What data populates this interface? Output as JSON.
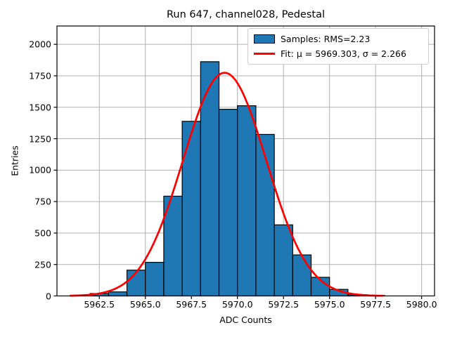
{
  "title": "Run 647, channel028, Pedestal",
  "axes": {
    "xlabel": "ADC Counts",
    "ylabel": "Entries",
    "xtick_labels": [
      "5962.5",
      "5965.0",
      "5967.5",
      "5970.0",
      "5972.5",
      "5975.0",
      "5977.5",
      "5980.0"
    ],
    "ytick_labels": [
      "0",
      "250",
      "500",
      "750",
      "1000",
      "1250",
      "1500",
      "1750",
      "2000"
    ]
  },
  "legend": {
    "entries": [
      {
        "label": "Samples: RMS=2.23",
        "marker": "patch",
        "color": "#1f77b4"
      },
      {
        "label": "Fit: μ = 5969.303, σ = 2.266",
        "marker": "line",
        "color": "#ff0000"
      }
    ]
  },
  "colors": {
    "bar_fill": "#1f77b4",
    "bar_edge": "#000000",
    "fit_line": "#ff0000",
    "grid": "#b0b0b0",
    "spine": "#000000",
    "background": "#ffffff"
  },
  "chart_data": {
    "type": "bar",
    "subtype": "histogram",
    "title": "Run 647, channel028, Pedestal",
    "xlabel": "ADC Counts",
    "ylabel": "Entries",
    "bin_edges": [
      5961,
      5962,
      5963,
      5964,
      5965,
      5966,
      5967,
      5968,
      5969,
      5970,
      5971,
      5972,
      5973,
      5974,
      5975,
      5976,
      5977,
      5978
    ],
    "counts": [
      4,
      19,
      32,
      205,
      267,
      793,
      1388,
      1862,
      1484,
      1512,
      1284,
      565,
      326,
      148,
      52,
      10,
      3
    ],
    "xticks": [
      5962.5,
      5965.0,
      5967.5,
      5970.0,
      5972.5,
      5975.0,
      5977.5,
      5980.0
    ],
    "yticks": [
      0,
      250,
      500,
      750,
      1000,
      1250,
      1500,
      1750,
      2000
    ],
    "xlim": [
      5960.2,
      5980.7
    ],
    "ylim": [
      0,
      2146
    ],
    "grid": true,
    "legend_position": "upper right",
    "series": [
      {
        "name": "Samples: RMS=2.23",
        "type": "histogram",
        "rms": 2.23
      },
      {
        "name": "Fit: μ = 5969.303, σ = 2.266",
        "type": "gaussian_fit",
        "mu": 5969.303,
        "sigma": 2.266,
        "peak": 1774,
        "x_range": [
          5960.9,
          5977.9
        ]
      }
    ]
  }
}
